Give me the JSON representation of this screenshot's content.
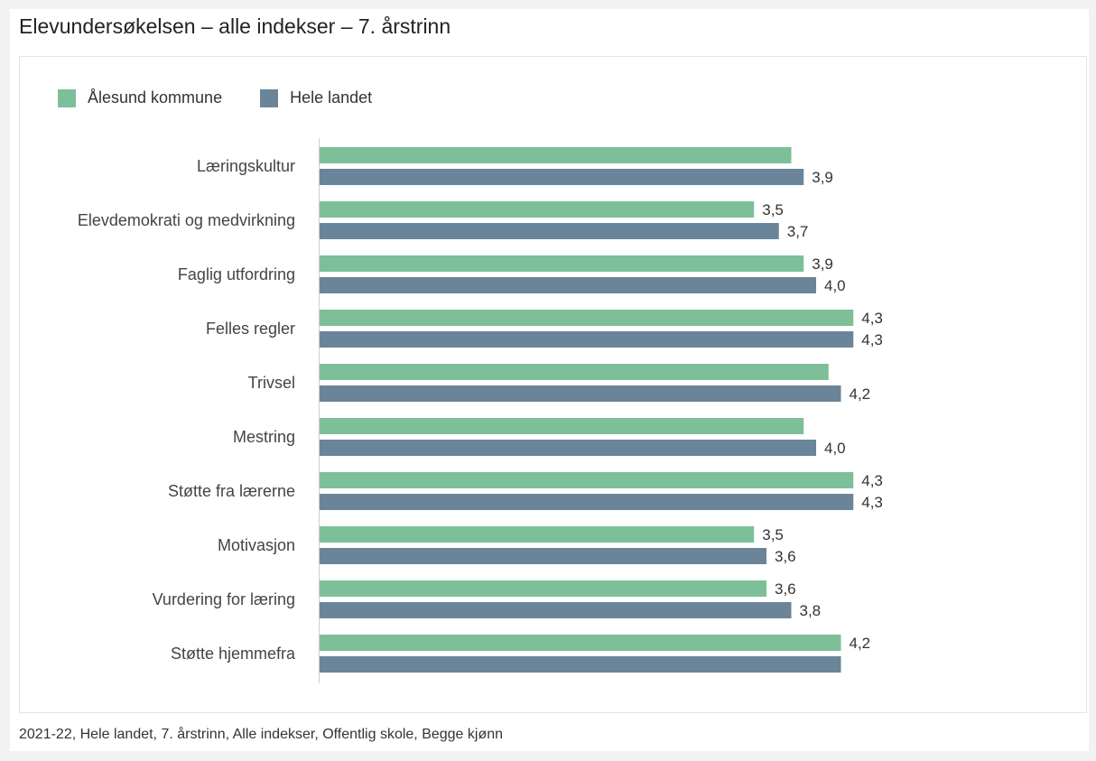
{
  "header": {
    "title": "Elevundersøkelsen – alle indekser – 7. årstrinn"
  },
  "footer": {
    "note": "2021-22, Hele landet, 7. årstrinn, Alle indekser, Offentlig skole, Begge kjønn"
  },
  "colors": {
    "series_a": "#7dbf98",
    "series_b": "#6a8599",
    "axis": "#cfcfcf",
    "label": "#444444"
  },
  "chart_data": {
    "type": "bar",
    "orientation": "horizontal",
    "categories": [
      "Læringskultur",
      "Elevdemokrati og medvirkning",
      "Faglig utfordring",
      "Felles regler",
      "Trivsel",
      "Mestring",
      "Støtte fra lærerne",
      "Motivasjon",
      "Vurdering for læring",
      "Støtte hjemmefra"
    ],
    "series": [
      {
        "name": "Ålesund kommune",
        "values": [
          3.8,
          3.5,
          3.9,
          4.3,
          4.1,
          3.9,
          4.3,
          3.5,
          3.6,
          4.2
        ],
        "labels": [
          "",
          "3,5",
          "3,9",
          "4,3",
          "",
          "",
          "4,3",
          "3,5",
          "3,6",
          "4,2"
        ]
      },
      {
        "name": "Hele landet",
        "values": [
          3.9,
          3.7,
          4.0,
          4.3,
          4.2,
          4.0,
          4.3,
          3.6,
          3.8,
          4.2
        ],
        "labels": [
          "3,9",
          "3,7",
          "4,0",
          "4,3",
          "4,2",
          "4,0",
          "4,3",
          "3,6",
          "3,8",
          ""
        ]
      }
    ],
    "xlim": [
      0,
      5
    ],
    "grid": false,
    "legend_position": "top-left"
  }
}
